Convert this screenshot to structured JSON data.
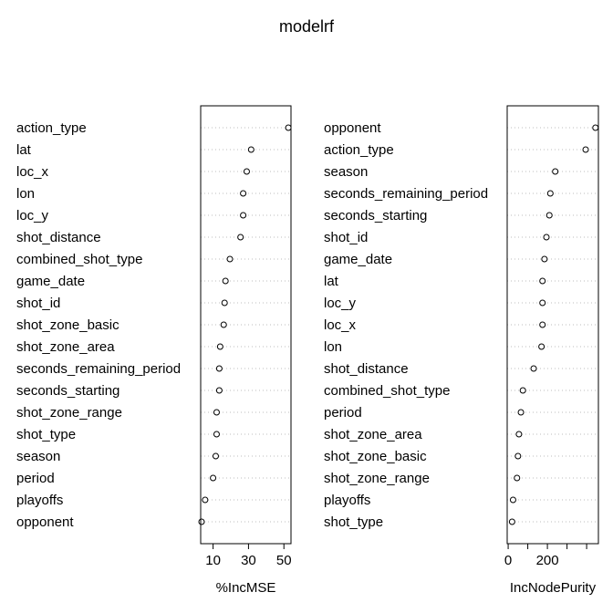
{
  "chart_data": {
    "type": "scatter",
    "title": "modelrf",
    "panels": [
      {
        "xlabel": "%IncMSE",
        "xlim": [
          3,
          54
        ],
        "xticks": [
          10,
          30,
          50
        ],
        "tick_labels": [
          "10",
          "30",
          "50"
        ],
        "categories": [
          "action_type",
          "lat",
          "loc_x",
          "lon",
          "loc_y",
          "shot_distance",
          "combined_shot_type",
          "game_date",
          "shot_id",
          "shot_zone_basic",
          "shot_zone_area",
          "seconds_remaining_period",
          "seconds_starting",
          "shot_zone_range",
          "shot_type",
          "season",
          "period",
          "playoffs",
          "opponent"
        ],
        "values": [
          52.5,
          31.5,
          29,
          27,
          27,
          25.5,
          19.5,
          17,
          16.5,
          16,
          14,
          13.5,
          13.5,
          12,
          12,
          11.5,
          10,
          5.5,
          3.5
        ]
      },
      {
        "xlabel": "IncNodePurity",
        "xlim": [
          -5,
          460
        ],
        "xticks": [
          0,
          100,
          200,
          300,
          400
        ],
        "tick_labels": [
          "0",
          "",
          "200",
          "",
          ""
        ],
        "categories": [
          "opponent",
          "action_type",
          "season",
          "seconds_remaining_period",
          "seconds_starting",
          "shot_id",
          "game_date",
          "lat",
          "loc_y",
          "loc_x",
          "lon",
          "shot_distance",
          "combined_shot_type",
          "period",
          "shot_zone_area",
          "shot_zone_basic",
          "shot_zone_range",
          "playoffs",
          "shot_type"
        ],
        "values": [
          445,
          395,
          240,
          215,
          210,
          195,
          185,
          175,
          175,
          175,
          170,
          130,
          75,
          65,
          55,
          50,
          45,
          25,
          20
        ]
      }
    ]
  }
}
